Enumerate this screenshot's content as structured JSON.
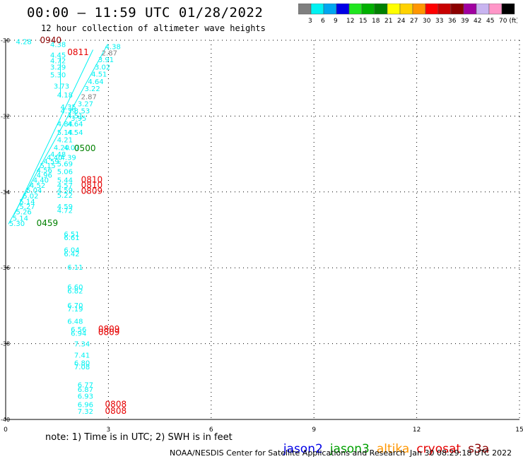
{
  "header": {
    "title": "00:00 – 11:59 UTC 01/28/2022",
    "subtitle": "12 hour collection of altimeter wave heights"
  },
  "colorbar": {
    "colors": [
      "#7f7f7f",
      "#00f2f2",
      "#00a6f0",
      "#0000e6",
      "#1fe61f",
      "#00b000",
      "#008000",
      "#ffff00",
      "#ffd200",
      "#ff9600",
      "#ff0000",
      "#c80000",
      "#8b0000",
      "#a000a0",
      "#c8b4f0",
      "#ff96c8",
      "#000000"
    ],
    "ticks": [
      "3",
      "6",
      "9",
      "12",
      "15",
      "18",
      "21",
      "24",
      "27",
      "30",
      "33",
      "36",
      "39",
      "42",
      "45",
      "70 (ft)"
    ]
  },
  "legend": {
    "items": [
      {
        "label": "jason2",
        "color": "#0000e6"
      },
      {
        "label": "jason3",
        "color": "#00a000"
      },
      {
        "label": "altika",
        "color": "#ff9600"
      },
      {
        "label": "cryosat",
        "color": "#e60000"
      },
      {
        "label": "s3a",
        "color": "#8b0000"
      }
    ]
  },
  "footer": {
    "note": "note: 1) Time is in UTC; 2) SWH is in feet",
    "credit": "NOAA/NESDIS Center for Satellite Applications and Research",
    "generated": "Jan 30 08:29:18 UTC 2022"
  },
  "chart_data": {
    "type": "scatter",
    "title": "00:00 – 11:59 UTC 01/28/2022",
    "subtitle": "12 hour collection of altimeter wave heights",
    "xlim": [
      0,
      15
    ],
    "ylim": [
      -40,
      -30
    ],
    "xticks": [
      "0",
      "3",
      "6",
      "9",
      "12",
      "15"
    ],
    "yticks": [
      "-30",
      "-32",
      "-34",
      "-36",
      "-38",
      "-40"
    ],
    "grid": true,
    "points": [
      {
        "x": 0.3,
        "y": -30.03,
        "label": "4.28",
        "color": "#00f2f2"
      },
      {
        "x": 1.3,
        "y": -30.1,
        "label": "4.38",
        "color": "#00f2f2"
      },
      {
        "x": 1.3,
        "y": -30.38,
        "label": "4.45",
        "color": "#00f2f2"
      },
      {
        "x": 1.3,
        "y": -30.53,
        "label": "4.72",
        "color": "#00f2f2"
      },
      {
        "x": 1.3,
        "y": -30.7,
        "label": "3.29",
        "color": "#00f2f2"
      },
      {
        "x": 1.3,
        "y": -30.9,
        "label": "5.30",
        "color": "#00f2f2"
      },
      {
        "x": 1.4,
        "y": -31.2,
        "label": "3.73",
        "color": "#00f2f2"
      },
      {
        "x": 1.5,
        "y": -31.43,
        "label": "4.18",
        "color": "#00f2f2"
      },
      {
        "x": 2.9,
        "y": -30.16,
        "label": "4.38",
        "color": "#00f2f2"
      },
      {
        "x": 2.8,
        "y": -30.33,
        "label": "2.87",
        "color": "#7f7f7f"
      },
      {
        "x": 2.7,
        "y": -30.5,
        "label": "3.91",
        "color": "#00f2f2"
      },
      {
        "x": 2.6,
        "y": -30.7,
        "label": "3.02",
        "color": "#00f2f2"
      },
      {
        "x": 2.5,
        "y": -30.88,
        "label": "4.51",
        "color": "#00f2f2"
      },
      {
        "x": 2.4,
        "y": -31.08,
        "label": "4.64",
        "color": "#00f2f2"
      },
      {
        "x": 2.3,
        "y": -31.27,
        "label": "3.22",
        "color": "#00f2f2"
      },
      {
        "x": 2.2,
        "y": -31.48,
        "label": "2.87",
        "color": "#7f7f7f"
      },
      {
        "x": 2.1,
        "y": -31.67,
        "label": "3.27",
        "color": "#00f2f2"
      },
      {
        "x": 1.6,
        "y": -31.75,
        "label": "4.35",
        "color": "#00f2f2"
      },
      {
        "x": 1.6,
        "y": -31.85,
        "label": "4.39",
        "color": "#00f2f2"
      },
      {
        "x": 2.0,
        "y": -31.85,
        "label": "3.53",
        "color": "#00f2f2"
      },
      {
        "x": 1.8,
        "y": -31.98,
        "label": "4.51",
        "color": "#00f2f2"
      },
      {
        "x": 1.9,
        "y": -32.05,
        "label": "3.95",
        "color": "#00f2f2"
      },
      {
        "x": 1.5,
        "y": -32.2,
        "label": "4.84",
        "color": "#00f2f2"
      },
      {
        "x": 1.8,
        "y": -32.2,
        "label": "4.64",
        "color": "#00f2f2"
      },
      {
        "x": 1.5,
        "y": -32.42,
        "label": "5.14",
        "color": "#00f2f2"
      },
      {
        "x": 1.8,
        "y": -32.42,
        "label": "4.54",
        "color": "#00f2f2"
      },
      {
        "x": 1.5,
        "y": -32.62,
        "label": "4.21",
        "color": "#00f2f2"
      },
      {
        "x": 1.4,
        "y": -32.82,
        "label": "4.20",
        "color": "#00f2f2"
      },
      {
        "x": 1.7,
        "y": -32.82,
        "label": "4.07",
        "color": "#00f2f2"
      },
      {
        "x": 2.0,
        "y": -32.85,
        "label": "0500",
        "color": "#008000"
      },
      {
        "x": 1.3,
        "y": -33.0,
        "label": "4.48",
        "color": "#00f2f2"
      },
      {
        "x": 1.2,
        "y": -33.08,
        "label": "4.40",
        "color": "#00f2f2"
      },
      {
        "x": 1.6,
        "y": -33.08,
        "label": "4.39",
        "color": "#00f2f2"
      },
      {
        "x": 1.1,
        "y": -33.18,
        "label": "4.59",
        "color": "#00f2f2"
      },
      {
        "x": 1.5,
        "y": -33.25,
        "label": "5.69",
        "color": "#00f2f2"
      },
      {
        "x": 1.0,
        "y": -33.3,
        "label": "5.15",
        "color": "#00f2f2"
      },
      {
        "x": 0.9,
        "y": -33.42,
        "label": "4.56",
        "color": "#00f2f2"
      },
      {
        "x": 1.5,
        "y": -33.45,
        "label": "5.06",
        "color": "#00f2f2"
      },
      {
        "x": 0.9,
        "y": -33.55,
        "label": "4.96",
        "color": "#00f2f2"
      },
      {
        "x": 0.8,
        "y": -33.68,
        "label": "4.40",
        "color": "#00f2f2"
      },
      {
        "x": 1.5,
        "y": -33.68,
        "label": "5.44",
        "color": "#00f2f2"
      },
      {
        "x": 2.2,
        "y": -33.68,
        "label": "0810",
        "color": "#e60000"
      },
      {
        "x": 0.7,
        "y": -33.82,
        "label": "4.52",
        "color": "#00f2f2"
      },
      {
        "x": 1.5,
        "y": -33.82,
        "label": "4.57",
        "color": "#00f2f2"
      },
      {
        "x": 2.2,
        "y": -33.82,
        "label": "0810",
        "color": "#e60000"
      },
      {
        "x": 0.6,
        "y": -33.95,
        "label": "5.04",
        "color": "#00f2f2"
      },
      {
        "x": 1.5,
        "y": -33.95,
        "label": "4.59",
        "color": "#00f2f2"
      },
      {
        "x": 2.2,
        "y": -33.98,
        "label": "0809",
        "color": "#e60000"
      },
      {
        "x": 1.5,
        "y": -34.08,
        "label": "5.22",
        "color": "#00f2f2"
      },
      {
        "x": 0.5,
        "y": -34.1,
        "label": "5.02",
        "color": "#00f2f2"
      },
      {
        "x": 0.4,
        "y": -34.25,
        "label": "5.14",
        "color": "#00f2f2"
      },
      {
        "x": 0.4,
        "y": -34.38,
        "label": "5.27",
        "color": "#00f2f2"
      },
      {
        "x": 1.5,
        "y": -34.38,
        "label": "4.59",
        "color": "#00f2f2"
      },
      {
        "x": 1.5,
        "y": -34.48,
        "label": "4.72",
        "color": "#00f2f2"
      },
      {
        "x": 0.3,
        "y": -34.52,
        "label": "5.26",
        "color": "#00f2f2"
      },
      {
        "x": 0.2,
        "y": -34.68,
        "label": "5.14",
        "color": "#00f2f2"
      },
      {
        "x": 0.1,
        "y": -34.82,
        "label": "5.30",
        "color": "#00f2f2"
      },
      {
        "x": 0.9,
        "y": -34.82,
        "label": "0459",
        "color": "#008000"
      },
      {
        "x": 1.7,
        "y": -35.1,
        "label": "6.51",
        "color": "#00f2f2"
      },
      {
        "x": 1.7,
        "y": -35.2,
        "label": "6.61",
        "color": "#00f2f2"
      },
      {
        "x": 1.7,
        "y": -35.52,
        "label": "6.04",
        "color": "#00f2f2"
      },
      {
        "x": 1.7,
        "y": -35.62,
        "label": "6.42",
        "color": "#00f2f2"
      },
      {
        "x": 1.8,
        "y": -35.98,
        "label": "6.11",
        "color": "#00f2f2"
      },
      {
        "x": 1.8,
        "y": -36.5,
        "label": "6.60",
        "color": "#00f2f2"
      },
      {
        "x": 1.8,
        "y": -36.6,
        "label": "6.82",
        "color": "#00f2f2"
      },
      {
        "x": 1.8,
        "y": -36.98,
        "label": "6.70",
        "color": "#00f2f2"
      },
      {
        "x": 1.8,
        "y": -37.08,
        "label": "7.19",
        "color": "#00f2f2"
      },
      {
        "x": 1.8,
        "y": -37.4,
        "label": "6.48",
        "color": "#00f2f2"
      },
      {
        "x": 1.9,
        "y": -37.62,
        "label": "6.56",
        "color": "#00f2f2"
      },
      {
        "x": 1.9,
        "y": -37.72,
        "label": "6.94",
        "color": "#00f2f2"
      },
      {
        "x": 2.7,
        "y": -37.62,
        "label": "0809",
        "color": "#e60000"
      },
      {
        "x": 2.7,
        "y": -37.7,
        "label": "0809",
        "color": "#e60000"
      },
      {
        "x": 2.0,
        "y": -38.0,
        "label": "7.34",
        "color": "#00f2f2"
      },
      {
        "x": 2.0,
        "y": -38.3,
        "label": "7.41",
        "color": "#00f2f2"
      },
      {
        "x": 2.0,
        "y": -38.5,
        "label": "6.80",
        "color": "#00f2f2"
      },
      {
        "x": 2.0,
        "y": -38.6,
        "label": "7.08",
        "color": "#00f2f2"
      },
      {
        "x": 2.1,
        "y": -39.08,
        "label": "6.77",
        "color": "#00f2f2"
      },
      {
        "x": 2.1,
        "y": -39.2,
        "label": "6.87",
        "color": "#00f2f2"
      },
      {
        "x": 2.1,
        "y": -39.38,
        "label": "6.93",
        "color": "#00f2f2"
      },
      {
        "x": 2.1,
        "y": -39.6,
        "label": "6.96",
        "color": "#00f2f2"
      },
      {
        "x": 2.1,
        "y": -39.78,
        "label": "7.32",
        "color": "#00f2f2"
      },
      {
        "x": 2.9,
        "y": -39.6,
        "label": "0808",
        "color": "#e60000"
      },
      {
        "x": 2.9,
        "y": -39.78,
        "label": "0808",
        "color": "#e60000"
      },
      {
        "x": 1.0,
        "y": -30.0,
        "label": "0940",
        "color": "#8b0000"
      },
      {
        "x": 1.8,
        "y": -30.32,
        "label": "0811",
        "color": "#e60000"
      }
    ],
    "tracks": [
      {
        "color": "#00f2f2",
        "x": [
          2.95,
          0.08
        ],
        "y": [
          -30.15,
          -34.85
        ]
      },
      {
        "color": "#00f2f2",
        "x": [
          2.55,
          0.25
        ],
        "y": [
          -30.25,
          -34.6
        ]
      },
      {
        "color": "#00f2f2",
        "x": [
          1.6,
          1.6
        ],
        "y": [
          -30.45,
          -31.5
        ]
      }
    ]
  }
}
